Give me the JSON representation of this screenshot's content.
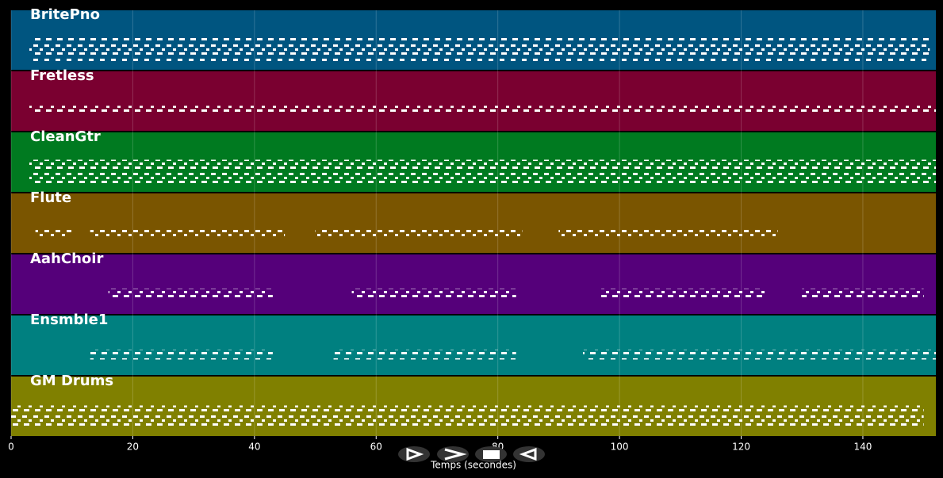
{
  "chart_data": {
    "type": "pianoroll",
    "xlabel": "Temps (secondes)",
    "xlim": [
      0,
      152
    ],
    "xticks": [
      0,
      20,
      40,
      60,
      80,
      100,
      120,
      140
    ],
    "grid": true,
    "tracks": [
      {
        "name": "BritePno",
        "color": "#005580",
        "segments": [
          [
            3,
            43
          ],
          [
            43,
            84
          ],
          [
            84,
            151
          ]
        ]
      },
      {
        "name": "Fretless",
        "color": "#7a0030",
        "segments": [
          [
            3,
            152
          ]
        ]
      },
      {
        "name": "CleanGtr",
        "color": "#007a20",
        "segments": [
          [
            3,
            43
          ],
          [
            43,
            124
          ],
          [
            124,
            152
          ]
        ]
      },
      {
        "name": "Flute",
        "color": "#7a5500",
        "segments": [
          [
            4,
            10
          ],
          [
            13,
            45
          ],
          [
            50,
            84
          ],
          [
            90,
            126
          ]
        ]
      },
      {
        "name": "AahChoir",
        "color": "#55007a",
        "segments": [
          [
            16,
            43
          ],
          [
            56,
            83
          ],
          [
            97,
            124
          ],
          [
            130,
            150
          ]
        ]
      },
      {
        "name": "Ensmble1",
        "color": "#008080",
        "segments": [
          [
            13,
            43
          ],
          [
            53,
            83
          ],
          [
            94,
            152
          ]
        ]
      },
      {
        "name": "GM Drums",
        "color": "#808000",
        "segments": [
          [
            0,
            150
          ]
        ]
      }
    ]
  }
}
